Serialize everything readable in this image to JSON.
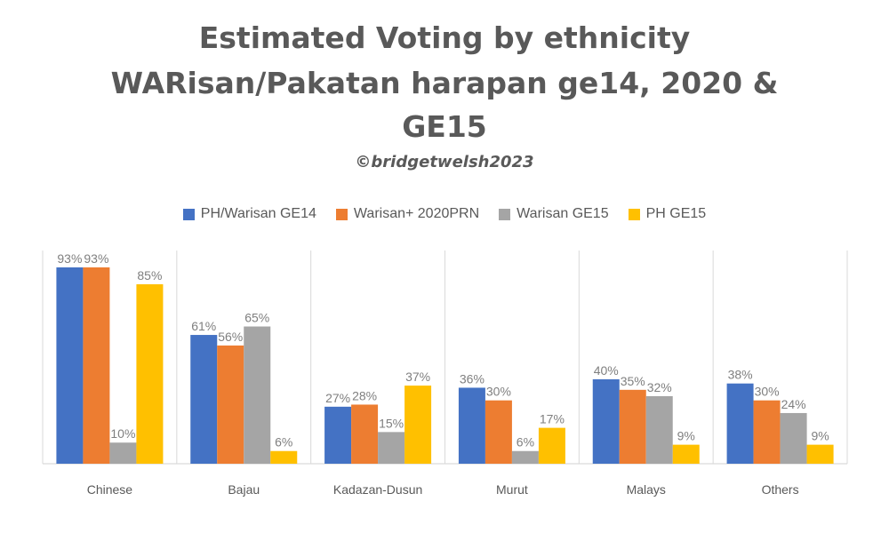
{
  "chart_data": {
    "type": "bar",
    "title_lines": [
      "Estimated Voting by ethnicity",
      "WARisan/Pakatan harapan ge14, 2020 &",
      "GE15"
    ],
    "subtitle": "©bridgetwelsh2023",
    "categories": [
      "Chinese",
      "Bajau",
      "Kadazan-Dusun",
      "Murut",
      "Malays",
      "Others"
    ],
    "series": [
      {
        "name": "PH/Warisan GE14",
        "color": "#4472C4",
        "values": [
          93,
          61,
          27,
          36,
          40,
          38
        ]
      },
      {
        "name": "Warisan+ 2020PRN",
        "color": "#ED7D31",
        "values": [
          93,
          56,
          28,
          30,
          35,
          30
        ]
      },
      {
        "name": "Warisan GE15",
        "color": "#A5A5A5",
        "values": [
          10,
          65,
          15,
          6,
          32,
          24
        ]
      },
      {
        "name": "PH GE15",
        "color": "#FFC000",
        "values": [
          85,
          6,
          37,
          17,
          9,
          9
        ]
      }
    ],
    "value_suffix": "%",
    "ylim": [
      0,
      100
    ],
    "legend_position": "top",
    "grid": "vertical separators between categories",
    "xlabel": "",
    "ylabel": ""
  }
}
